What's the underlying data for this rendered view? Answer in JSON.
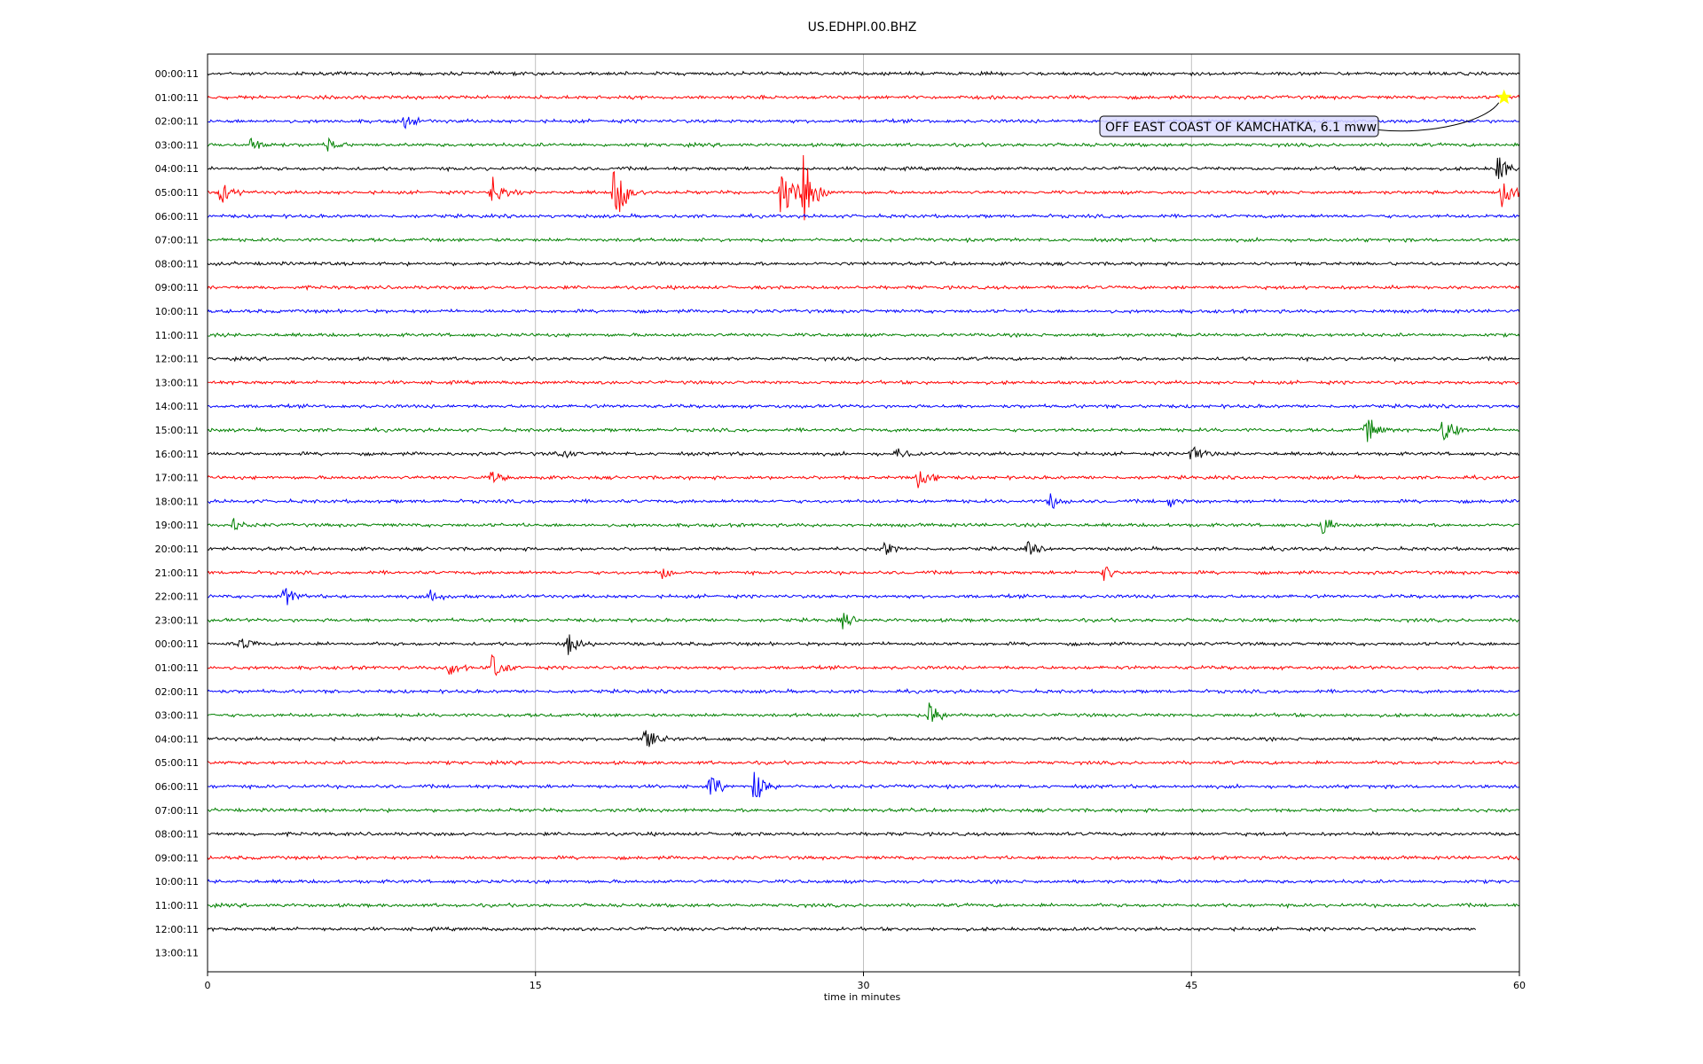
{
  "chart_data": {
    "type": "line",
    "title": "US.EDHPI.00.BHZ",
    "xlabel": "time in minutes",
    "xlim": [
      0,
      60
    ],
    "xticks": [
      "0",
      "15",
      "30",
      "45",
      "60"
    ],
    "grid": "vertical",
    "row_labels": [
      "00:00:11",
      "01:00:11",
      "02:00:11",
      "03:00:11",
      "04:00:11",
      "05:00:11",
      "06:00:11",
      "07:00:11",
      "08:00:11",
      "09:00:11",
      "10:00:11",
      "11:00:11",
      "12:00:11",
      "13:00:11",
      "14:00:11",
      "15:00:11",
      "16:00:11",
      "17:00:11",
      "18:00:11",
      "19:00:11",
      "20:00:11",
      "21:00:11",
      "22:00:11",
      "23:00:11",
      "00:00:11",
      "01:00:11",
      "02:00:11",
      "03:00:11",
      "04:00:11",
      "05:00:11",
      "06:00:11",
      "07:00:11",
      "08:00:11",
      "09:00:11",
      "10:00:11",
      "11:00:11",
      "12:00:11",
      "13:00:11"
    ],
    "trace_colors": [
      "#000000",
      "#ff0000",
      "#0000ff",
      "#008000"
    ],
    "trace_count": 37,
    "last_trace_end_minutes": 58,
    "events": [
      {
        "row": 2,
        "t": 9.0,
        "amp": 0.5
      },
      {
        "row": 3,
        "t": 2.0,
        "amp": 0.4
      },
      {
        "row": 3,
        "t": 5.5,
        "amp": 0.4
      },
      {
        "row": 4,
        "t": 59.0,
        "amp": 1.2
      },
      {
        "row": 5,
        "t": 0.6,
        "amp": 0.6
      },
      {
        "row": 5,
        "t": 13.0,
        "amp": 0.9
      },
      {
        "row": 5,
        "t": 18.6,
        "amp": 1.8
      },
      {
        "row": 5,
        "t": 26.2,
        "amp": 2.0
      },
      {
        "row": 5,
        "t": 27.2,
        "amp": 2.0
      },
      {
        "row": 5,
        "t": 59.2,
        "amp": 1.0
      },
      {
        "row": 15,
        "t": 53.0,
        "amp": 1.0
      },
      {
        "row": 15,
        "t": 56.5,
        "amp": 0.8
      },
      {
        "row": 16,
        "t": 16.0,
        "amp": 0.4
      },
      {
        "row": 16,
        "t": 31.5,
        "amp": 0.5
      },
      {
        "row": 16,
        "t": 45.0,
        "amp": 0.5
      },
      {
        "row": 17,
        "t": 13.0,
        "amp": 0.4
      },
      {
        "row": 17,
        "t": 32.5,
        "amp": 0.7
      },
      {
        "row": 18,
        "t": 38.5,
        "amp": 0.5
      },
      {
        "row": 18,
        "t": 44.0,
        "amp": 0.4
      },
      {
        "row": 19,
        "t": 1.2,
        "amp": 0.4
      },
      {
        "row": 19,
        "t": 51.0,
        "amp": 0.5
      },
      {
        "row": 20,
        "t": 31.0,
        "amp": 0.4
      },
      {
        "row": 20,
        "t": 37.5,
        "amp": 0.4
      },
      {
        "row": 21,
        "t": 20.8,
        "amp": 0.4
      },
      {
        "row": 21,
        "t": 41.0,
        "amp": 0.5
      },
      {
        "row": 22,
        "t": 3.5,
        "amp": 0.6
      },
      {
        "row": 22,
        "t": 10.2,
        "amp": 0.5
      },
      {
        "row": 23,
        "t": 29.0,
        "amp": 0.5
      },
      {
        "row": 24,
        "t": 1.5,
        "amp": 0.4
      },
      {
        "row": 24,
        "t": 16.5,
        "amp": 0.7
      },
      {
        "row": 25,
        "t": 11.0,
        "amp": 0.5
      },
      {
        "row": 25,
        "t": 13.0,
        "amp": 0.7
      },
      {
        "row": 27,
        "t": 33.0,
        "amp": 0.7
      },
      {
        "row": 28,
        "t": 20.0,
        "amp": 0.8
      },
      {
        "row": 30,
        "t": 23.0,
        "amp": 0.6
      },
      {
        "row": 30,
        "t": 25.0,
        "amp": 0.9
      }
    ],
    "annotation": {
      "text": "OFF EAST COAST OF KAMCHATKA, 6.1 mww",
      "marker_row": 1,
      "marker_t": 59.3,
      "marker_color": "#ffff00"
    }
  }
}
